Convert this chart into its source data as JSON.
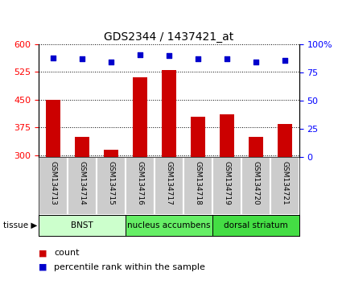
{
  "title": "GDS2344 / 1437421_at",
  "samples": [
    "GSM134713",
    "GSM134714",
    "GSM134715",
    "GSM134716",
    "GSM134717",
    "GSM134718",
    "GSM134719",
    "GSM134720",
    "GSM134721"
  ],
  "counts": [
    450,
    350,
    315,
    510,
    530,
    405,
    410,
    350,
    385
  ],
  "percentiles": [
    88,
    87,
    84,
    91,
    90,
    87,
    87,
    84,
    86
  ],
  "ylim_left": [
    295,
    600
  ],
  "ylim_right": [
    0,
    100
  ],
  "yticks_left": [
    300,
    375,
    450,
    525,
    600
  ],
  "yticks_right": [
    0,
    25,
    50,
    75,
    100
  ],
  "bar_color": "#cc0000",
  "dot_color": "#0000cc",
  "bg_color": "#ffffff",
  "tissue_groups": [
    {
      "label": "BNST",
      "start": 0,
      "end": 3,
      "color": "#ccffcc"
    },
    {
      "label": "nucleus accumbens",
      "start": 3,
      "end": 6,
      "color": "#66ee66"
    },
    {
      "label": "dorsal striatum",
      "start": 6,
      "end": 9,
      "color": "#44dd44"
    }
  ],
  "tissue_label": "tissue",
  "legend_count_label": "count",
  "legend_percentile_label": "percentile rank within the sample"
}
